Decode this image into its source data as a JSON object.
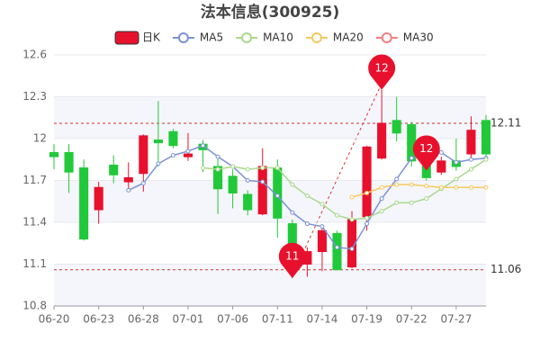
{
  "chart_data": {
    "type": "candlestick",
    "title": "法本信息(300925)",
    "categories": [
      "06-20",
      null,
      null,
      "06-23",
      null,
      null,
      "06-28",
      null,
      null,
      "07-01",
      null,
      null,
      "07-06",
      null,
      null,
      "07-11",
      null,
      null,
      "07-14",
      null,
      null,
      "07-19",
      null,
      null,
      "07-22",
      null,
      null,
      "07-27",
      null,
      null
    ],
    "ylim": [
      10.8,
      12.6
    ],
    "yticks": [
      10.8,
      11.1,
      11.4,
      11.7,
      12,
      12.3,
      12.6
    ],
    "grid": true,
    "up_color": "#e8112d",
    "down_color": "#21c93a",
    "candles": {
      "name": "日K",
      "open": [
        11.9,
        11.9,
        11.79,
        11.49,
        11.81,
        11.69,
        11.75,
        11.99,
        12.05,
        11.87,
        11.96,
        11.8,
        11.73,
        11.6,
        11.46,
        11.79,
        11.39,
        11.1,
        11.19,
        11.32,
        11.08,
        11.44,
        11.86,
        12.13,
        12.1,
        11.81,
        11.76,
        11.84,
        11.89,
        12.13
      ],
      "close": [
        11.87,
        11.76,
        11.28,
        11.65,
        11.74,
        11.72,
        12.02,
        11.97,
        11.95,
        11.89,
        11.92,
        11.64,
        11.61,
        11.49,
        11.8,
        11.43,
        11.17,
        11.19,
        11.34,
        11.06,
        11.42,
        11.94,
        12.11,
        12.04,
        11.84,
        11.72,
        11.84,
        11.8,
        12.06,
        11.89
      ],
      "high": [
        11.96,
        11.96,
        11.85,
        11.69,
        11.88,
        11.83,
        12.03,
        12.27,
        12.07,
        12.04,
        11.99,
        11.86,
        11.78,
        11.63,
        11.93,
        11.85,
        11.42,
        11.22,
        11.38,
        11.34,
        11.48,
        11.95,
        12.35,
        12.3,
        12.12,
        11.96,
        11.87,
        12.0,
        12.16,
        12.17
      ],
      "low": [
        11.78,
        11.61,
        11.27,
        11.39,
        11.68,
        11.62,
        11.62,
        11.8,
        11.93,
        11.84,
        11.76,
        11.46,
        11.5,
        11.45,
        11.45,
        11.29,
        11.0,
        11.01,
        11.05,
        11.06,
        11.07,
        11.34,
        11.85,
        11.98,
        11.8,
        11.7,
        11.74,
        11.77,
        11.85,
        11.85
      ]
    },
    "series": [
      {
        "name": "MA5",
        "color": "#7b92d6",
        "values": [
          null,
          null,
          null,
          null,
          null,
          11.63,
          11.68,
          11.82,
          11.88,
          11.91,
          11.95,
          11.87,
          11.8,
          11.7,
          11.69,
          11.59,
          11.47,
          11.39,
          11.37,
          11.22,
          11.21,
          11.39,
          11.57,
          11.71,
          11.86,
          11.88,
          11.9,
          11.83,
          11.85,
          11.86
        ]
      },
      {
        "name": "MA10",
        "color": "#a9d98b",
        "values": [
          null,
          null,
          null,
          null,
          null,
          null,
          null,
          null,
          null,
          null,
          11.79,
          11.78,
          11.8,
          11.78,
          11.79,
          11.79,
          11.67,
          11.59,
          11.53,
          11.45,
          11.42,
          11.43,
          11.48,
          11.54,
          11.54,
          11.57,
          11.64,
          11.71,
          11.78,
          11.85
        ]
      },
      {
        "name": "MA20",
        "color": "#f6c95f",
        "values": [
          null,
          null,
          null,
          null,
          null,
          null,
          null,
          null,
          null,
          null,
          null,
          null,
          null,
          null,
          null,
          null,
          null,
          null,
          null,
          null,
          11.58,
          11.61,
          11.65,
          11.67,
          11.67,
          11.66,
          11.65,
          11.65,
          11.65,
          11.65
        ]
      },
      {
        "name": "MA30",
        "color": "#f07f7f",
        "values": [
          null,
          null,
          null,
          null,
          null,
          null,
          null,
          null,
          null,
          null,
          null,
          null,
          null,
          null,
          null,
          null,
          null,
          null,
          null,
          null,
          null,
          null,
          null,
          null,
          null,
          null,
          null,
          null,
          null,
          null
        ]
      }
    ],
    "reference_lines": [
      {
        "value": 12.11
      },
      {
        "value": 11.06
      }
    ],
    "markers": [
      {
        "index": 16,
        "value": 11,
        "label": "11"
      },
      {
        "index": 22,
        "value": 12.35,
        "label": "12"
      },
      {
        "index": 25,
        "value": 11.77,
        "label": "12"
      }
    ]
  }
}
